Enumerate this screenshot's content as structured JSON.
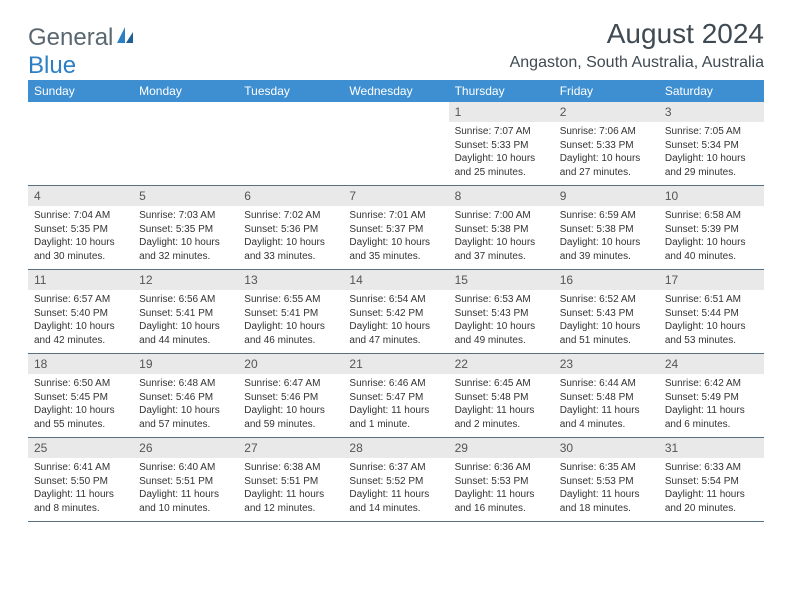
{
  "logo": {
    "text1": "General",
    "text2": "Blue"
  },
  "title": "August 2024",
  "location": "Angaston, South Australia, Australia",
  "colors": {
    "header_bg": "#3d8fd1",
    "header_text": "#ffffff",
    "daynum_bg": "#e9e9e9",
    "border": "#5a6f82",
    "title_text": "#404a52",
    "logo_gray": "#5a6770",
    "logo_blue": "#2d7fc4"
  },
  "dow": [
    "Sunday",
    "Monday",
    "Tuesday",
    "Wednesday",
    "Thursday",
    "Friday",
    "Saturday"
  ],
  "weeks": [
    [
      null,
      null,
      null,
      null,
      {
        "n": "1",
        "sr": "Sunrise: 7:07 AM",
        "ss": "Sunset: 5:33 PM",
        "dl": "Daylight: 10 hours and 25 minutes."
      },
      {
        "n": "2",
        "sr": "Sunrise: 7:06 AM",
        "ss": "Sunset: 5:33 PM",
        "dl": "Daylight: 10 hours and 27 minutes."
      },
      {
        "n": "3",
        "sr": "Sunrise: 7:05 AM",
        "ss": "Sunset: 5:34 PM",
        "dl": "Daylight: 10 hours and 29 minutes."
      }
    ],
    [
      {
        "n": "4",
        "sr": "Sunrise: 7:04 AM",
        "ss": "Sunset: 5:35 PM",
        "dl": "Daylight: 10 hours and 30 minutes."
      },
      {
        "n": "5",
        "sr": "Sunrise: 7:03 AM",
        "ss": "Sunset: 5:35 PM",
        "dl": "Daylight: 10 hours and 32 minutes."
      },
      {
        "n": "6",
        "sr": "Sunrise: 7:02 AM",
        "ss": "Sunset: 5:36 PM",
        "dl": "Daylight: 10 hours and 33 minutes."
      },
      {
        "n": "7",
        "sr": "Sunrise: 7:01 AM",
        "ss": "Sunset: 5:37 PM",
        "dl": "Daylight: 10 hours and 35 minutes."
      },
      {
        "n": "8",
        "sr": "Sunrise: 7:00 AM",
        "ss": "Sunset: 5:38 PM",
        "dl": "Daylight: 10 hours and 37 minutes."
      },
      {
        "n": "9",
        "sr": "Sunrise: 6:59 AM",
        "ss": "Sunset: 5:38 PM",
        "dl": "Daylight: 10 hours and 39 minutes."
      },
      {
        "n": "10",
        "sr": "Sunrise: 6:58 AM",
        "ss": "Sunset: 5:39 PM",
        "dl": "Daylight: 10 hours and 40 minutes."
      }
    ],
    [
      {
        "n": "11",
        "sr": "Sunrise: 6:57 AM",
        "ss": "Sunset: 5:40 PM",
        "dl": "Daylight: 10 hours and 42 minutes."
      },
      {
        "n": "12",
        "sr": "Sunrise: 6:56 AM",
        "ss": "Sunset: 5:41 PM",
        "dl": "Daylight: 10 hours and 44 minutes."
      },
      {
        "n": "13",
        "sr": "Sunrise: 6:55 AM",
        "ss": "Sunset: 5:41 PM",
        "dl": "Daylight: 10 hours and 46 minutes."
      },
      {
        "n": "14",
        "sr": "Sunrise: 6:54 AM",
        "ss": "Sunset: 5:42 PM",
        "dl": "Daylight: 10 hours and 47 minutes."
      },
      {
        "n": "15",
        "sr": "Sunrise: 6:53 AM",
        "ss": "Sunset: 5:43 PM",
        "dl": "Daylight: 10 hours and 49 minutes."
      },
      {
        "n": "16",
        "sr": "Sunrise: 6:52 AM",
        "ss": "Sunset: 5:43 PM",
        "dl": "Daylight: 10 hours and 51 minutes."
      },
      {
        "n": "17",
        "sr": "Sunrise: 6:51 AM",
        "ss": "Sunset: 5:44 PM",
        "dl": "Daylight: 10 hours and 53 minutes."
      }
    ],
    [
      {
        "n": "18",
        "sr": "Sunrise: 6:50 AM",
        "ss": "Sunset: 5:45 PM",
        "dl": "Daylight: 10 hours and 55 minutes."
      },
      {
        "n": "19",
        "sr": "Sunrise: 6:48 AM",
        "ss": "Sunset: 5:46 PM",
        "dl": "Daylight: 10 hours and 57 minutes."
      },
      {
        "n": "20",
        "sr": "Sunrise: 6:47 AM",
        "ss": "Sunset: 5:46 PM",
        "dl": "Daylight: 10 hours and 59 minutes."
      },
      {
        "n": "21",
        "sr": "Sunrise: 6:46 AM",
        "ss": "Sunset: 5:47 PM",
        "dl": "Daylight: 11 hours and 1 minute."
      },
      {
        "n": "22",
        "sr": "Sunrise: 6:45 AM",
        "ss": "Sunset: 5:48 PM",
        "dl": "Daylight: 11 hours and 2 minutes."
      },
      {
        "n": "23",
        "sr": "Sunrise: 6:44 AM",
        "ss": "Sunset: 5:48 PM",
        "dl": "Daylight: 11 hours and 4 minutes."
      },
      {
        "n": "24",
        "sr": "Sunrise: 6:42 AM",
        "ss": "Sunset: 5:49 PM",
        "dl": "Daylight: 11 hours and 6 minutes."
      }
    ],
    [
      {
        "n": "25",
        "sr": "Sunrise: 6:41 AM",
        "ss": "Sunset: 5:50 PM",
        "dl": "Daylight: 11 hours and 8 minutes."
      },
      {
        "n": "26",
        "sr": "Sunrise: 6:40 AM",
        "ss": "Sunset: 5:51 PM",
        "dl": "Daylight: 11 hours and 10 minutes."
      },
      {
        "n": "27",
        "sr": "Sunrise: 6:38 AM",
        "ss": "Sunset: 5:51 PM",
        "dl": "Daylight: 11 hours and 12 minutes."
      },
      {
        "n": "28",
        "sr": "Sunrise: 6:37 AM",
        "ss": "Sunset: 5:52 PM",
        "dl": "Daylight: 11 hours and 14 minutes."
      },
      {
        "n": "29",
        "sr": "Sunrise: 6:36 AM",
        "ss": "Sunset: 5:53 PM",
        "dl": "Daylight: 11 hours and 16 minutes."
      },
      {
        "n": "30",
        "sr": "Sunrise: 6:35 AM",
        "ss": "Sunset: 5:53 PM",
        "dl": "Daylight: 11 hours and 18 minutes."
      },
      {
        "n": "31",
        "sr": "Sunrise: 6:33 AM",
        "ss": "Sunset: 5:54 PM",
        "dl": "Daylight: 11 hours and 20 minutes."
      }
    ]
  ]
}
